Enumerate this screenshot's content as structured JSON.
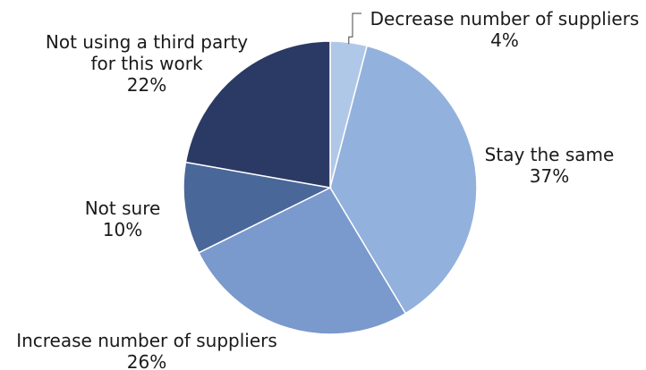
{
  "chart_data": {
    "type": "pie",
    "title": "",
    "slices": [
      {
        "label_lines": [
          "Decrease number of suppliers"
        ],
        "value_text": "4%",
        "value": 4,
        "color": "#b0c8e8"
      },
      {
        "label_lines": [
          "Stay the same"
        ],
        "value_text": "37%",
        "value": 37,
        "color": "#93b1dd"
      },
      {
        "label_lines": [
          "Increase number of suppliers"
        ],
        "value_text": "26%",
        "value": 26,
        "color": "#7a99cc"
      },
      {
        "label_lines": [
          "Not sure"
        ],
        "value_text": "10%",
        "value": 10,
        "color": "#4a6799"
      },
      {
        "label_lines": [
          "Not using a third party",
          "for this work"
        ],
        "value_text": "22%",
        "value": 22,
        "color": "#2b3a64"
      }
    ],
    "start_angle_deg": 0,
    "direction": "clockwise",
    "legend": "none",
    "data_labels": "outside"
  }
}
